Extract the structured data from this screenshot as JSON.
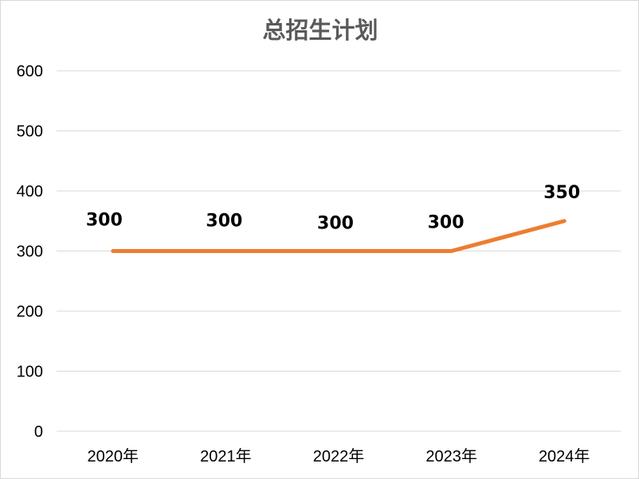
{
  "chart_data": {
    "type": "line",
    "title": "总招生计划",
    "categories": [
      "2020年",
      "2021年",
      "2022年",
      "2023年",
      "2024年"
    ],
    "series": [
      {
        "values": [
          300,
          300,
          300,
          300,
          350
        ],
        "data_labels": [
          "300",
          "300",
          "300",
          "300",
          "350"
        ],
        "color": "#ED7D31"
      }
    ],
    "y_ticks": [
      "0",
      "100",
      "200",
      "300",
      "400",
      "500",
      "600"
    ],
    "ylim": [
      0,
      600
    ],
    "grid": true,
    "legend": "none",
    "xlabel": "",
    "ylabel": ""
  }
}
